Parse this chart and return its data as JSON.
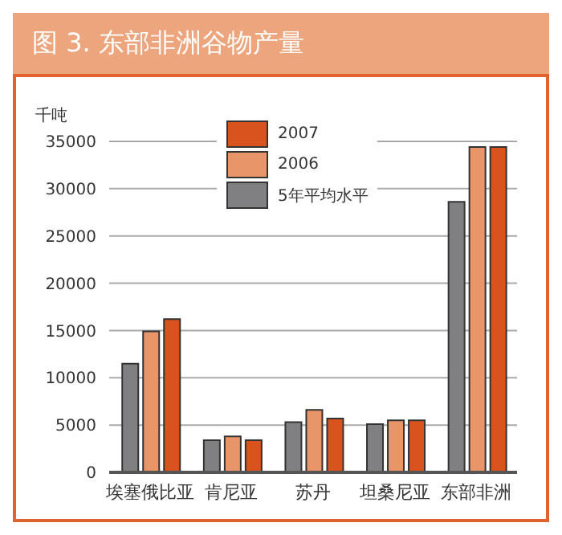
{
  "chart_data": {
    "type": "bar",
    "title": "图 3. 东部非洲谷物产量",
    "ylabel": "千吨",
    "categories": [
      "埃塞俄比亚",
      "肯尼亚",
      "苏丹",
      "坦桑尼亚",
      "东部非洲"
    ],
    "series": [
      {
        "name": "5年平均水平",
        "color": "#808083",
        "values": [
          11500,
          3400,
          5300,
          5100,
          28600
        ]
      },
      {
        "name": "2006",
        "color": "#e8956a",
        "values": [
          14900,
          3800,
          6600,
          5500,
          34400
        ]
      },
      {
        "name": "2007",
        "color": "#d9531e",
        "values": [
          16200,
          3400,
          5700,
          5500,
          34400
        ]
      }
    ],
    "ylim": [
      0,
      35000
    ],
    "yticks": [
      0,
      5000,
      10000,
      15000,
      20000,
      25000,
      30000,
      35000
    ],
    "grid": "y",
    "legend": "top"
  }
}
